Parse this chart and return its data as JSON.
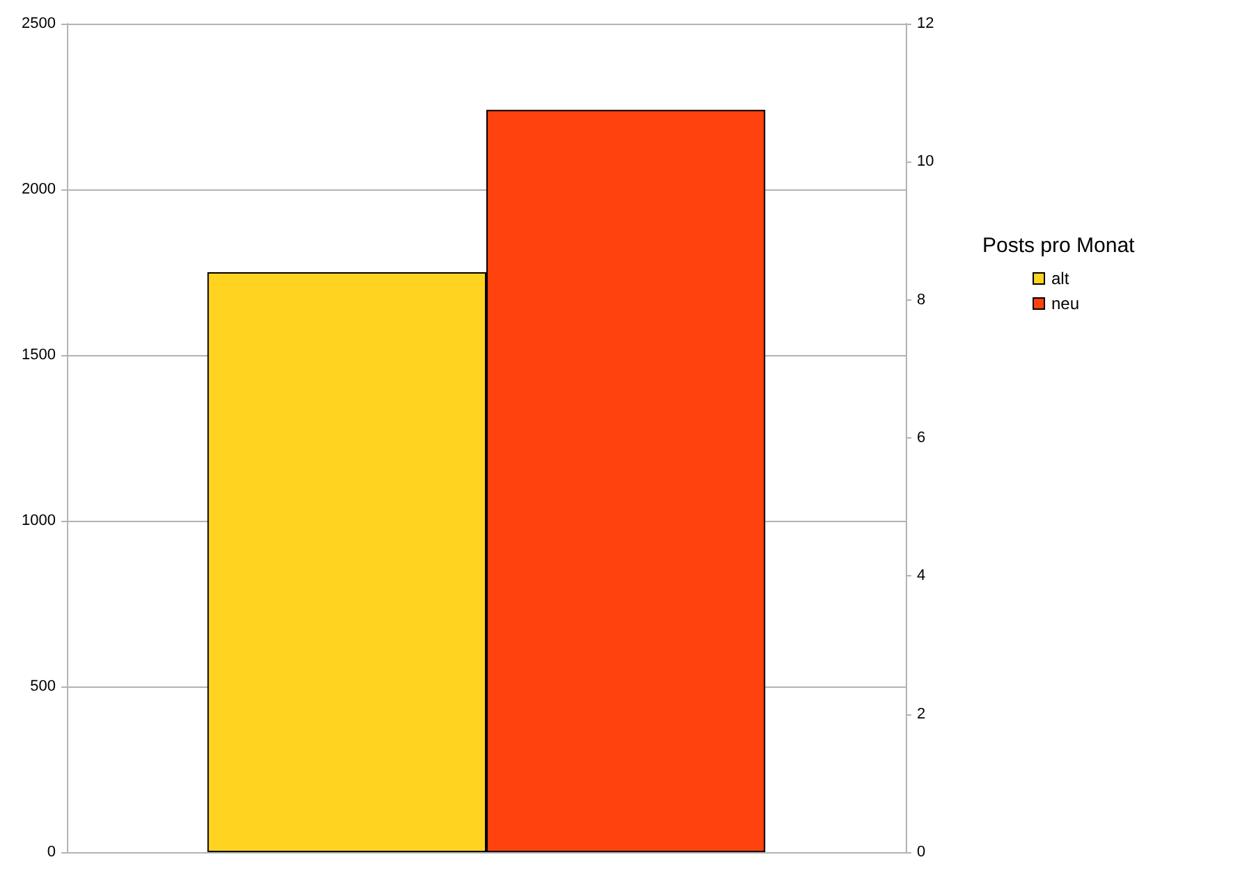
{
  "chart_data": {
    "type": "bar",
    "legend_title": "Posts pro Monat",
    "categories": [
      null
    ],
    "series": [
      {
        "name": "alt",
        "color": "#ffd320",
        "values": [
          1750
        ]
      },
      {
        "name": "neu",
        "color": "#ff420e",
        "values": [
          2240
        ]
      }
    ],
    "ylim": [
      0,
      2500
    ],
    "yticks": [
      0,
      500,
      1000,
      1500,
      2000,
      2500
    ],
    "y2lim": [
      0,
      12
    ],
    "y2ticks": [
      0,
      2,
      4,
      6,
      8,
      10,
      12
    ],
    "grid": "y",
    "legend": "right"
  }
}
